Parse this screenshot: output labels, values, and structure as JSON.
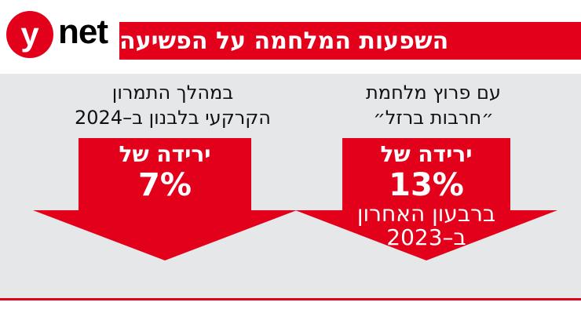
{
  "logo": {
    "mark": "y",
    "wordmark": "net"
  },
  "title": "השפעות המלחמה על הפשיעה",
  "columns": [
    {
      "heading_line1": "עם פרוץ מלחמת",
      "heading_line2": "״חרבות ברזל״",
      "label": "ירידה של",
      "value": "13%",
      "sub_line1": "ברבעון האחרון",
      "sub_line2": "ב–2023"
    },
    {
      "heading_line1": "במהלך התמרון",
      "heading_line2": "הקרקעי בלבנון ב–2024",
      "label": "ירידה של",
      "value": "7%"
    }
  ],
  "colors": {
    "red": "#e3001b",
    "panel": "#e6e7e8"
  }
}
